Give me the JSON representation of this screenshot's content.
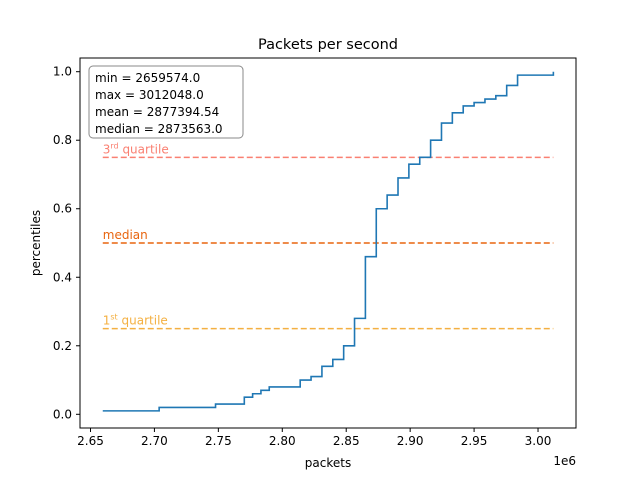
{
  "chart_data": {
    "type": "line",
    "title": "Packets per second",
    "xlabel": "packets",
    "ylabel": "percentiles",
    "x_offset_label": "1e6",
    "xlim": [
      2.6418,
      3.0297
    ],
    "ylim": [
      -0.04,
      1.04
    ],
    "x_ticks": [
      2.65,
      2.7,
      2.75,
      2.8,
      2.85,
      2.9,
      2.95,
      3.0
    ],
    "x_tick_labels": [
      "2.65",
      "2.70",
      "2.75",
      "2.80",
      "2.85",
      "2.90",
      "2.95",
      "3.00"
    ],
    "y_ticks": [
      0.0,
      0.2,
      0.4,
      0.6,
      0.8,
      1.0
    ],
    "y_tick_labels": [
      "0.0",
      "0.2",
      "0.4",
      "0.6",
      "0.8",
      "1.0"
    ],
    "grid": false,
    "series": [
      {
        "color": "#1f77b4",
        "step": "post",
        "x": [
          2.6596,
          2.7037,
          2.7478,
          2.7703,
          2.7768,
          2.7833,
          2.7898,
          2.814,
          2.8225,
          2.831,
          2.8395,
          2.848,
          2.8565,
          2.865,
          2.8735,
          2.882,
          2.8905,
          2.899,
          2.9075,
          2.916,
          2.9245,
          2.933,
          2.9415,
          2.95,
          2.9585,
          2.967,
          2.9755,
          2.984,
          3.012
        ],
        "y": [
          0.01,
          0.02,
          0.03,
          0.05,
          0.06,
          0.07,
          0.08,
          0.1,
          0.11,
          0.14,
          0.16,
          0.2,
          0.28,
          0.46,
          0.6,
          0.64,
          0.69,
          0.73,
          0.75,
          0.8,
          0.85,
          0.88,
          0.9,
          0.91,
          0.92,
          0.93,
          0.96,
          0.99,
          1.0
        ]
      }
    ],
    "reference_lines": [
      {
        "label_base": "3",
        "label_sup": "rd",
        "label_rest": " quartile",
        "y": 0.75,
        "color": "#fa8072"
      },
      {
        "label_base": "median",
        "label_sup": "",
        "label_rest": "",
        "y": 0.5,
        "color": "#e8650f"
      },
      {
        "label_base": "1",
        "label_sup": "st",
        "label_rest": " quartile",
        "y": 0.25,
        "color": "#f4b042"
      }
    ],
    "stats_box": {
      "lines": [
        "min = 2659574.0",
        "max = 3012048.0",
        "mean = 2877394.54",
        "median = 2873563.0"
      ],
      "placement": "top-left"
    }
  }
}
